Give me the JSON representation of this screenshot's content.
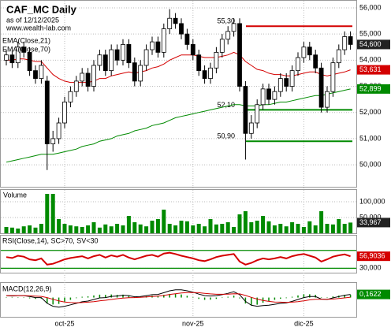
{
  "chart_data": [
    {
      "type": "candlestick",
      "title": "CAF_MC Daily",
      "subtitle": "as of 12/12/2025",
      "source": "www.wealth-lab.com",
      "categories": [
        null,
        null,
        null,
        null,
        null,
        null,
        null,
        null,
        null,
        null,
        "oct-25",
        null,
        null,
        null,
        null,
        null,
        null,
        null,
        null,
        null,
        null,
        null,
        null,
        null,
        null,
        null,
        null,
        null,
        null,
        null,
        null,
        null,
        "nov-25",
        null,
        null,
        null,
        null,
        null,
        null,
        null,
        null,
        null,
        null,
        null,
        null,
        null,
        null,
        null,
        null,
        null,
        null,
        "dic-25",
        null,
        null,
        null,
        null,
        null,
        null,
        null,
        null
      ],
      "open": [
        54.0,
        54.2,
        53.9,
        54.5,
        54.3,
        53.6,
        53.3,
        53.2,
        50.8,
        51.0,
        51.6,
        52.4,
        52.8,
        53.2,
        53.5,
        53.0,
        53.8,
        54.2,
        53.6,
        54.4,
        54.0,
        54.6,
        53.9,
        53.2,
        53.8,
        54.4,
        54.7,
        54.3,
        55.2,
        55.6,
        55.4,
        55.0,
        54.6,
        54.2,
        53.6,
        53.3,
        53.7,
        54.3,
        54.8,
        55.1,
        55.4,
        53.0,
        51.2,
        51.6,
        52.3,
        52.9,
        52.5,
        52.8,
        53.3,
        53.0,
        53.6,
        54.1,
        54.5,
        54.2,
        53.7,
        52.2,
        52.8,
        53.9,
        54.4,
        54.9
      ],
      "high": [
        54.4,
        54.4,
        54.7,
        54.7,
        54.5,
        53.8,
        54.0,
        53.4,
        51.3,
        51.8,
        52.6,
        53.0,
        53.4,
        53.7,
        53.7,
        54.0,
        54.4,
        54.4,
        54.6,
        54.6,
        54.8,
        54.8,
        54.1,
        54.0,
        54.6,
        54.9,
        54.9,
        55.4,
        55.95,
        55.8,
        55.6,
        55.2,
        54.8,
        54.4,
        53.8,
        53.9,
        54.5,
        55.0,
        55.3,
        55.6,
        55.6,
        53.2,
        51.9,
        52.5,
        53.1,
        53.1,
        53.0,
        53.5,
        53.5,
        53.8,
        54.3,
        54.7,
        54.7,
        54.4,
        53.9,
        53.0,
        54.1,
        54.6,
        55.1,
        55.1
      ],
      "low": [
        53.8,
        53.7,
        53.7,
        54.1,
        53.4,
        53.1,
        53.1,
        49.8,
        50.5,
        50.8,
        51.4,
        52.2,
        52.6,
        53.0,
        52.8,
        52.8,
        53.6,
        53.4,
        53.4,
        53.8,
        53.8,
        53.7,
        53.0,
        53.0,
        53.6,
        54.2,
        54.1,
        54.1,
        55.0,
        55.2,
        54.8,
        54.4,
        54.0,
        53.4,
        53.1,
        53.1,
        53.5,
        54.1,
        54.6,
        54.9,
        52.8,
        50.2,
        51.0,
        51.4,
        52.1,
        52.3,
        52.3,
        52.6,
        52.8,
        52.8,
        53.4,
        53.9,
        54.0,
        53.5,
        52.0,
        52.0,
        52.6,
        53.7,
        54.2,
        54.4
      ],
      "close": [
        54.2,
        53.9,
        54.5,
        54.3,
        53.6,
        53.3,
        53.8,
        50.8,
        51.0,
        51.6,
        52.4,
        52.8,
        53.2,
        53.5,
        53.0,
        53.8,
        54.2,
        53.6,
        54.4,
        54.0,
        54.6,
        53.9,
        53.2,
        53.8,
        54.4,
        54.7,
        54.3,
        55.2,
        55.6,
        55.4,
        55.0,
        54.6,
        54.2,
        53.6,
        53.3,
        53.7,
        54.3,
        54.8,
        55.1,
        55.4,
        53.0,
        51.2,
        51.6,
        52.3,
        52.9,
        52.5,
        52.8,
        53.3,
        53.0,
        53.6,
        54.1,
        54.5,
        54.2,
        53.7,
        52.2,
        52.8,
        53.9,
        54.4,
        54.9,
        54.6
      ],
      "close_label": "54,600",
      "series": [
        {
          "name": "EMA(Close,21)",
          "color": "#d40000",
          "last_label": "53,631",
          "values": [
            54.0,
            54.0,
            54.05,
            54.05,
            54.0,
            53.95,
            53.95,
            53.7,
            53.45,
            53.3,
            53.2,
            53.15,
            53.15,
            53.15,
            53.15,
            53.2,
            53.3,
            53.3,
            53.4,
            53.45,
            53.5,
            53.55,
            53.5,
            53.55,
            53.6,
            53.7,
            53.75,
            53.85,
            54.0,
            54.1,
            54.2,
            54.2,
            54.2,
            54.15,
            54.1,
            54.1,
            54.1,
            54.15,
            54.2,
            54.3,
            54.2,
            53.95,
            53.8,
            53.65,
            53.6,
            53.5,
            53.45,
            53.45,
            53.4,
            53.4,
            53.45,
            53.5,
            53.55,
            53.55,
            53.45,
            53.4,
            53.45,
            53.5,
            53.55,
            53.631
          ]
        },
        {
          "name": "EMA(Close,70)",
          "color": "#008a00",
          "last_label": "52,899",
          "values": [
            50.1,
            50.15,
            50.2,
            50.25,
            50.3,
            50.35,
            50.4,
            50.4,
            50.4,
            50.45,
            50.5,
            50.55,
            50.6,
            50.7,
            50.75,
            50.8,
            50.9,
            50.95,
            51.0,
            51.1,
            51.15,
            51.2,
            51.3,
            51.35,
            51.4,
            51.5,
            51.55,
            51.6,
            51.7,
            51.8,
            51.85,
            51.9,
            51.95,
            52.0,
            52.05,
            52.1,
            52.15,
            52.2,
            52.25,
            52.3,
            52.3,
            52.25,
            52.25,
            52.25,
            52.3,
            52.3,
            52.35,
            52.4,
            52.4,
            52.45,
            52.5,
            52.55,
            52.6,
            52.65,
            52.65,
            52.7,
            52.75,
            52.8,
            52.85,
            52.899
          ]
        }
      ],
      "levels": [
        {
          "value": 55.3,
          "label": "55,30",
          "color": "#d40000"
        },
        {
          "value": 52.1,
          "label": "52,10",
          "color": "#008a00"
        },
        {
          "value": 50.9,
          "label": "50,90",
          "color": "#008a00"
        }
      ],
      "ylim": [
        49.16,
        56.3
      ],
      "yticks": [
        {
          "value": 50,
          "label": "50,000"
        },
        {
          "value": 51,
          "label": "51,000"
        },
        {
          "value": 52,
          "label": "52,000"
        },
        {
          "value": 53,
          "label": "53,000"
        },
        {
          "value": 54,
          "label": "54,000"
        },
        {
          "value": 55,
          "label": "55,000"
        },
        {
          "value": 56,
          "label": "56,000"
        }
      ],
      "grid": true
    },
    {
      "type": "bar",
      "title": "Volume",
      "color": "#008a00",
      "values": [
        20000,
        18000,
        15000,
        22000,
        25000,
        18000,
        30000,
        125000,
        125000,
        45000,
        30000,
        25000,
        22000,
        20000,
        25000,
        35000,
        18000,
        28000,
        22000,
        30000,
        25000,
        55000,
        35000,
        28000,
        22000,
        40000,
        45000,
        75000,
        30000,
        25000,
        40000,
        38000,
        25000,
        30000,
        22000,
        45000,
        28000,
        30000,
        35000,
        20000,
        60000,
        70000,
        35000,
        40000,
        55000,
        38000,
        25000,
        30000,
        22000,
        35000,
        30000,
        20000,
        38000,
        25000,
        70000,
        30000,
        28000,
        45000,
        30000,
        33967
      ],
      "last_label": "33,967",
      "ylim": [
        0,
        140000
      ],
      "yticks": [
        {
          "value": 50000,
          "label": "50,000"
        },
        {
          "value": 100000,
          "label": "100,000"
        }
      ]
    },
    {
      "type": "line",
      "title": "RSI(Close,14), SC>70, SV<30",
      "color": "#d40000",
      "values": [
        55,
        53,
        58,
        56,
        50,
        48,
        52,
        38,
        40,
        45,
        50,
        53,
        55,
        57,
        52,
        57,
        60,
        54,
        59,
        56,
        60,
        54,
        50,
        54,
        58,
        60,
        56,
        63,
        65,
        62,
        58,
        55,
        52,
        48,
        46,
        50,
        55,
        58,
        60,
        62,
        45,
        38,
        42,
        48,
        52,
        50,
        52,
        55,
        52,
        57,
        60,
        62,
        58,
        54,
        45,
        50,
        56,
        59,
        61,
        56.9036
      ],
      "last_label": "56,9036",
      "levels": [
        70,
        30
      ],
      "level_color": "#008a00",
      "ylim": [
        20,
        105
      ],
      "yticks": [
        {
          "value": 30,
          "label": "30,000"
        }
      ]
    },
    {
      "type": "macd",
      "title": "MACD(12,26,9)",
      "series": [
        {
          "color": "#000000",
          "values": [
            0.1,
            0.08,
            0.1,
            0.1,
            0.05,
            0.0,
            0.0,
            -0.3,
            -0.45,
            -0.5,
            -0.45,
            -0.38,
            -0.3,
            -0.22,
            -0.18,
            -0.1,
            -0.02,
            0.0,
            0.06,
            0.08,
            0.12,
            0.1,
            0.04,
            0.05,
            0.1,
            0.15,
            0.16,
            0.25,
            0.35,
            0.4,
            0.4,
            0.35,
            0.28,
            0.18,
            0.1,
            0.08,
            0.1,
            0.15,
            0.22,
            0.3,
            0.15,
            -0.2,
            -0.4,
            -0.45,
            -0.42,
            -0.4,
            -0.35,
            -0.3,
            -0.28,
            -0.2,
            -0.1,
            0.0,
            0.05,
            0.05,
            -0.08,
            -0.1,
            -0.02,
            0.05,
            0.12,
            0.1622
          ]
        },
        {
          "color": "#d40000",
          "values": [
            0.1,
            0.1,
            0.1,
            0.1,
            0.09,
            0.07,
            0.06,
            0.0,
            -0.09,
            -0.17,
            -0.23,
            -0.26,
            -0.27,
            -0.26,
            -0.24,
            -0.21,
            -0.17,
            -0.14,
            -0.1,
            -0.06,
            -0.03,
            -0.01,
            0.0,
            0.01,
            0.03,
            0.05,
            0.07,
            0.11,
            0.16,
            0.2,
            0.24,
            0.26,
            0.26,
            0.25,
            0.22,
            0.19,
            0.17,
            0.17,
            0.18,
            0.2,
            0.19,
            0.11,
            0.01,
            -0.08,
            -0.15,
            -0.2,
            -0.23,
            -0.24,
            -0.25,
            -0.24,
            -0.21,
            -0.17,
            -0.12,
            -0.09,
            -0.09,
            -0.09,
            -0.08,
            -0.05,
            -0.02,
            0.02
          ]
        }
      ],
      "histogram": {
        "color": "#008a00",
        "values": [
          0,
          -0.02,
          0,
          0,
          -0.04,
          -0.07,
          -0.06,
          -0.3,
          -0.36,
          -0.33,
          -0.22,
          -0.12,
          -0.03,
          0.04,
          0.06,
          0.11,
          0.15,
          0.14,
          0.16,
          0.14,
          0.15,
          0.11,
          0.04,
          0.04,
          0.07,
          0.1,
          0.09,
          0.14,
          0.19,
          0.2,
          0.16,
          0.09,
          0.02,
          -0.07,
          -0.12,
          -0.11,
          -0.07,
          -0.02,
          0.04,
          0.1,
          -0.04,
          -0.31,
          -0.41,
          -0.37,
          -0.27,
          -0.2,
          -0.12,
          -0.06,
          -0.03,
          0.04,
          0.11,
          0.17,
          0.17,
          0.14,
          0.01,
          -0.01,
          0.06,
          0.1,
          0.14,
          0.14
        ]
      },
      "last_label": "0,1622",
      "label_color": "#008a00",
      "ylim": [
        -1.0,
        0.8
      ]
    }
  ]
}
